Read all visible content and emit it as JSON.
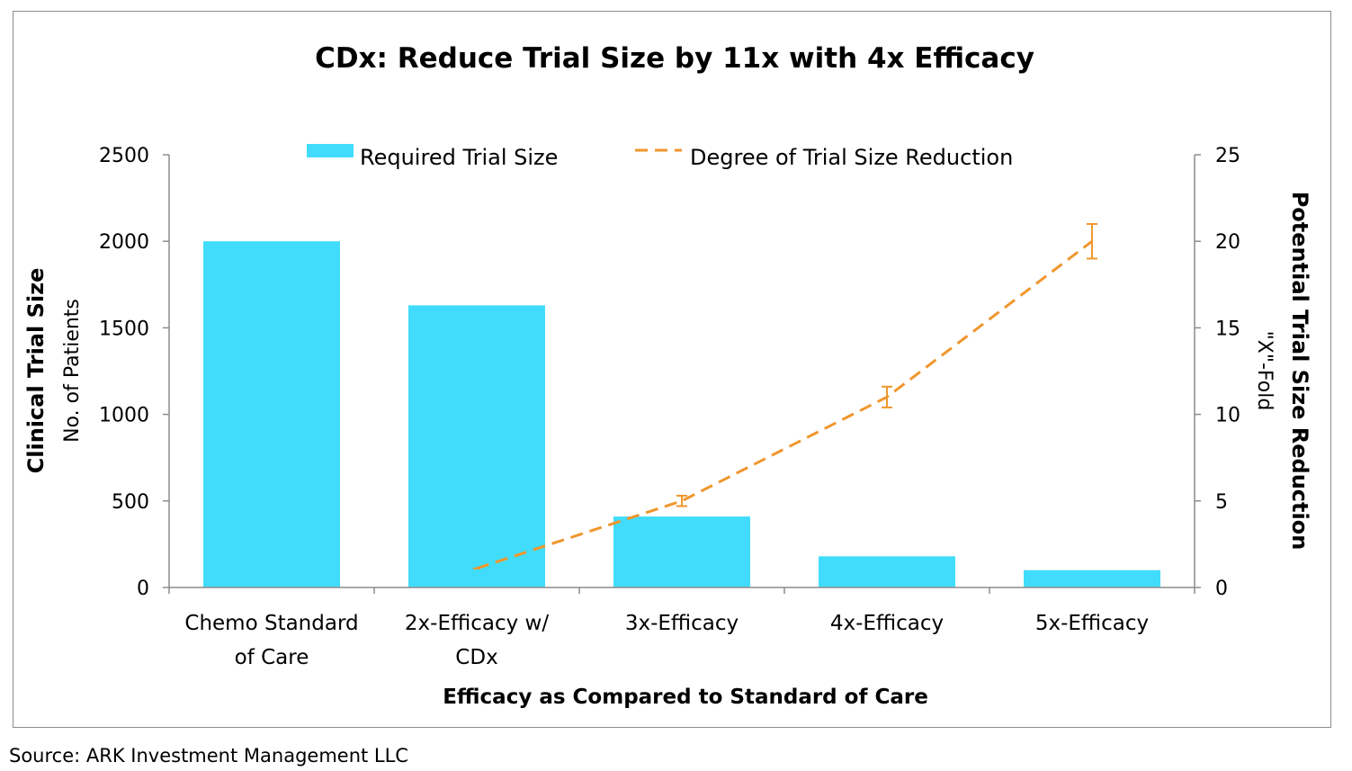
{
  "chart_data": {
    "type": "bar",
    "title": "CDx: Reduce Trial Size by 11x with 4x Efficacy",
    "categories": [
      [
        "Chemo Standard",
        "of Care"
      ],
      [
        "2x-Efficacy w/",
        "CDx"
      ],
      [
        "3x-Efficacy"
      ],
      [
        "4x-Efficacy"
      ],
      [
        "5x-Efficacy"
      ]
    ],
    "xlabel": "Efficacy as Compared to Standard of Care",
    "ylabel": "Clinical Trial Size",
    "ylabel_sub": "No. of Patients",
    "y2label": "Potential Trial Size Reduction",
    "y2label_sub": "\"X\"-Fold",
    "ylim": [
      0,
      2500
    ],
    "y2lim": [
      0,
      25
    ],
    "yticks": [
      0,
      500,
      1000,
      1500,
      2000,
      2500
    ],
    "y2ticks": [
      0,
      5,
      10,
      15,
      20,
      25
    ],
    "series": [
      {
        "name": "Required Trial Size",
        "type": "bar",
        "axis": "left",
        "color": "#41dcfb",
        "values": [
          2000,
          1630,
          410,
          180,
          100
        ]
      },
      {
        "name": "Degree of Trial Size Reduction",
        "type": "line",
        "axis": "right",
        "style": "dashed",
        "color": "#f0962d",
        "values": [
          null,
          1.1,
          5,
          11,
          20
        ],
        "error": [
          null,
          0,
          0.3,
          0.6,
          1
        ]
      }
    ],
    "legend": "top-center",
    "grid": false
  },
  "source": "Source: ARK Investment Management LLC"
}
